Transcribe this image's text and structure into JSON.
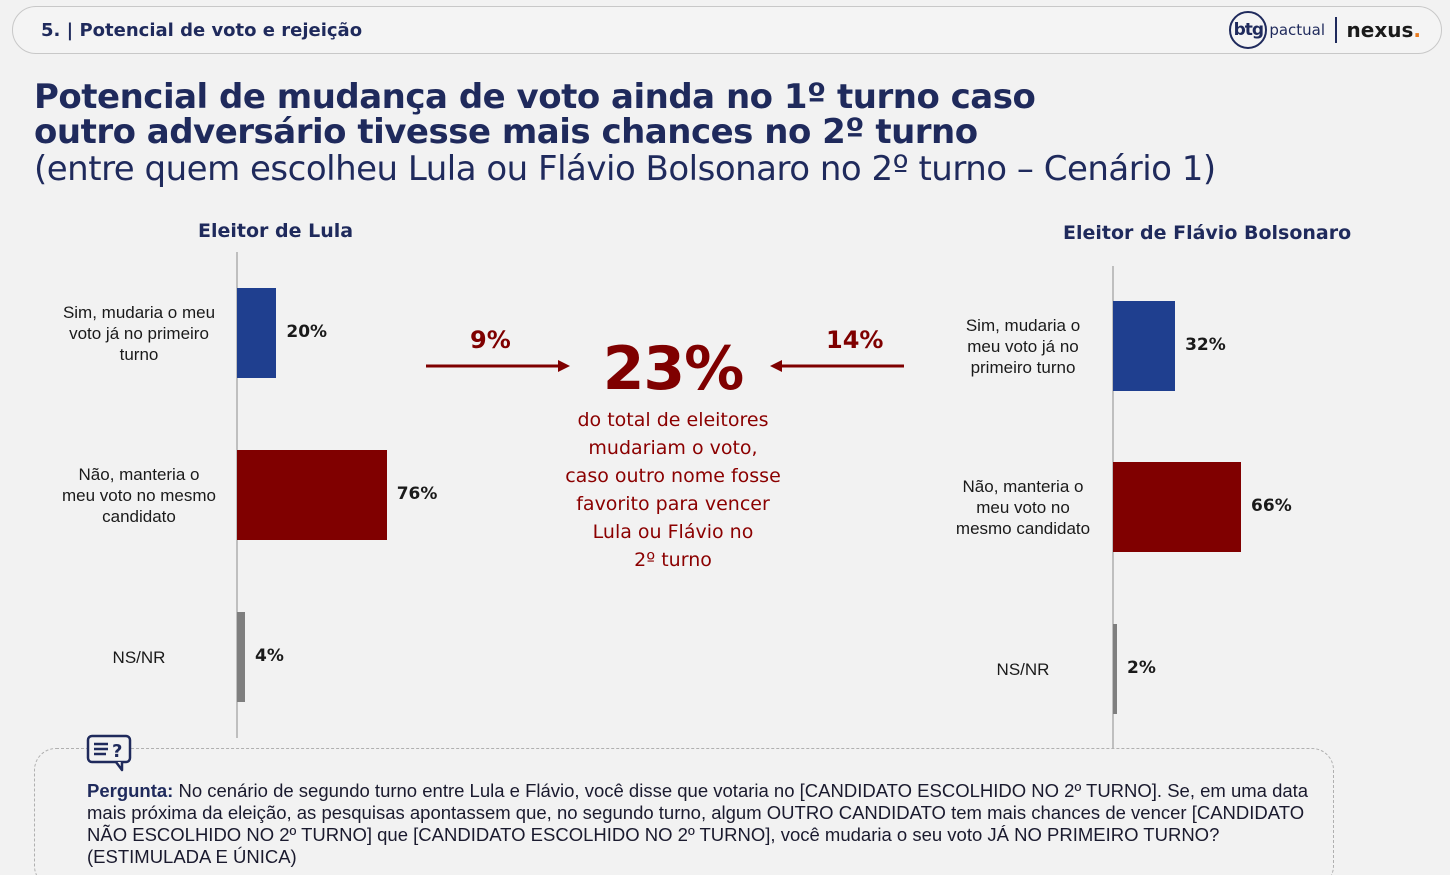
{
  "header": {
    "section": "5. | Potencial de voto e rejeição",
    "logo_btg": "btg",
    "logo_pactual": "pactual",
    "logo_nexus": "nexus",
    "logo_nexus_dot": "."
  },
  "title": {
    "line1": "Potencial de mudança de voto ainda no 1º turno caso",
    "line2": "outro adversário tivesse mais chances no 2º turno",
    "subtitle": "(entre quem escolheu Lula ou Flávio Bolsonaro no 2º turno – Cenário 1)"
  },
  "center": {
    "left_arrow_value": "9%",
    "right_arrow_value": "14%",
    "total": "23%",
    "lines": [
      "do total de eleitores",
      "mudariam o voto,",
      "caso outro nome fosse",
      "favorito para vencer",
      "Lula ou Flávio no",
      "2º turno"
    ]
  },
  "question": {
    "label": "Pergunta:",
    "text": " No cenário de segundo turno entre Lula e Flávio, você disse que votaria no [CANDIDATO ESCOLHIDO NO 2º TURNO]. Se, em uma data mais próxima da eleição, as pesquisas apontassem que, no segundo turno, algum OUTRO CANDIDATO tem mais chances de vencer [CANDIDATO NÃO ESCOLHIDO NO 2º TURNO] que [CANDIDATO ESCOLHIDO NO 2º TURNO], você mudaria o seu voto JÁ NO PRIMEIRO TURNO? (ESTIMULADA E ÚNICA)"
  },
  "colors": {
    "navy": "#1f3f8f",
    "maroon": "#800000",
    "gray": "#7f7f7f"
  },
  "chart_data": [
    {
      "type": "bar",
      "title": "Eleitor de Lula",
      "categories": [
        "Sim, mudaria o meu voto já no primeiro turno",
        "Não, manteria o meu voto no mesmo candidato",
        "NS/NR"
      ],
      "category_lines": [
        [
          "Sim, mudaria o meu",
          "voto já no primeiro",
          "turno"
        ],
        [
          "Não, manteria o",
          "meu voto no mesmo",
          "candidato"
        ],
        [
          "NS/NR"
        ]
      ],
      "values": [
        20,
        76,
        4
      ],
      "labels": [
        "20%",
        "76%",
        "4%"
      ],
      "colors": [
        "#1f3f8f",
        "#800000",
        "#7f7f7f"
      ],
      "orientation": "horizontal",
      "xlim": [
        0,
        100
      ]
    },
    {
      "type": "bar",
      "title": "Eleitor de Flávio Bolsonaro",
      "categories": [
        "Sim, mudaria o meu voto já no primeiro turno",
        "Não, manteria o meu voto no mesmo candidato",
        "NS/NR"
      ],
      "category_lines": [
        [
          "Sim, mudaria o",
          "meu voto já no",
          "primeiro turno"
        ],
        [
          "Não, manteria o",
          "meu voto no",
          "mesmo candidato"
        ],
        [
          "NS/NR"
        ]
      ],
      "values": [
        32,
        66,
        2
      ],
      "labels": [
        "32%",
        "66%",
        "2%"
      ],
      "colors": [
        "#1f3f8f",
        "#800000",
        "#7f7f7f"
      ],
      "orientation": "horizontal",
      "xlim": [
        0,
        100
      ]
    }
  ]
}
